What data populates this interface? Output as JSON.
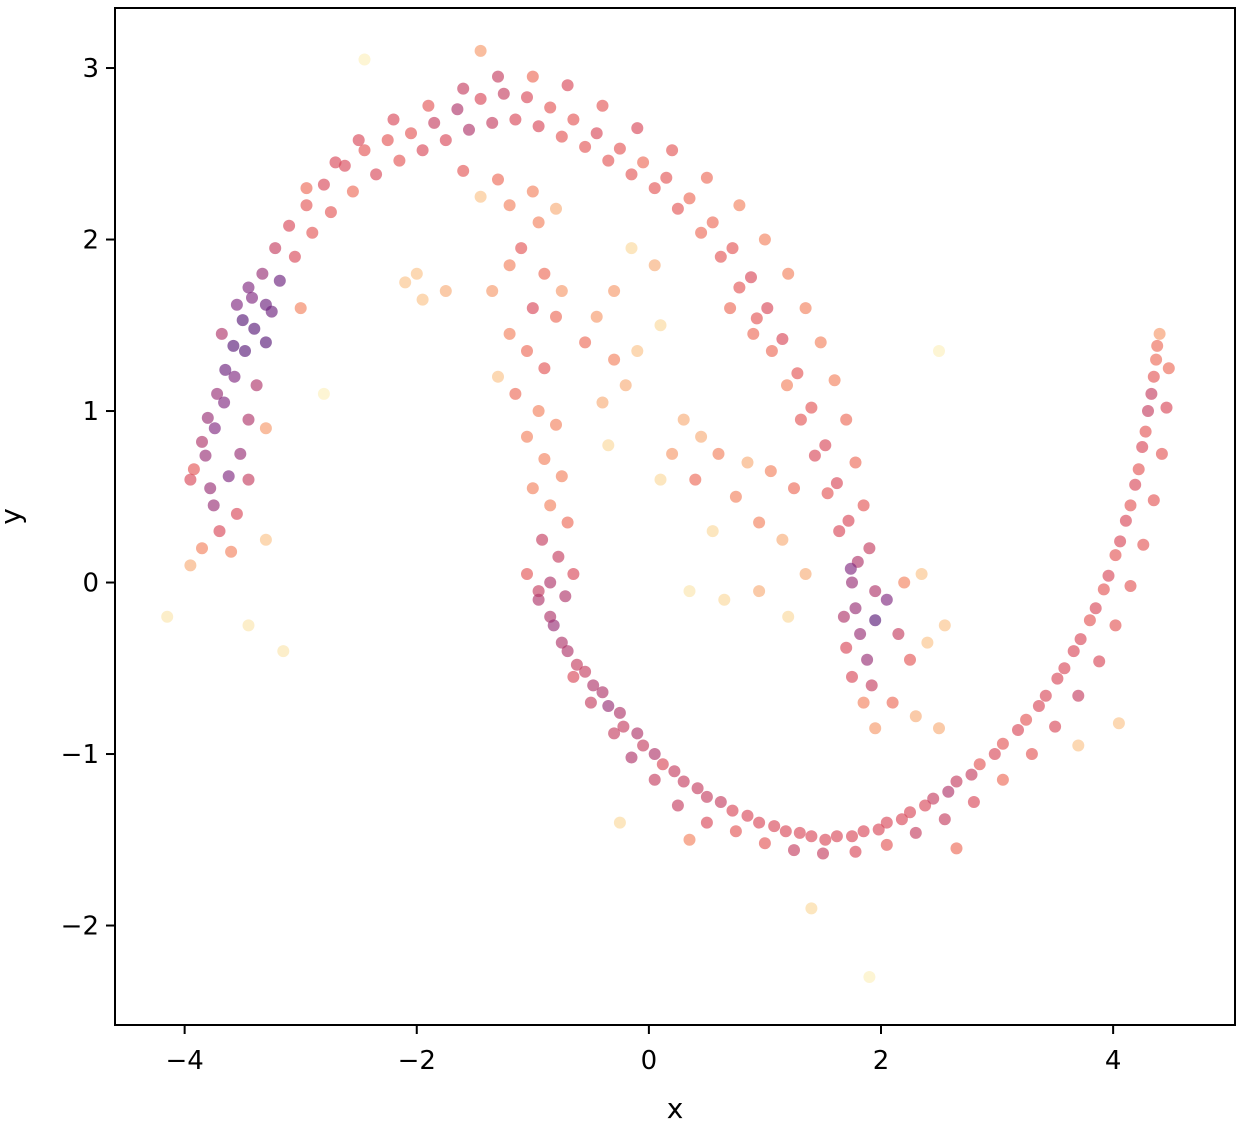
{
  "chart_data": {
    "type": "scatter",
    "title": "",
    "xlabel": "x",
    "ylabel": "y",
    "xlim": [
      -4.6,
      5.05
    ],
    "ylim": [
      -2.58,
      3.35
    ],
    "xticks": [
      -4,
      -2,
      0,
      2,
      4
    ],
    "yticks": [
      -2,
      -1,
      0,
      1,
      2,
      3
    ],
    "xtick_labels": [
      "−4",
      "−2",
      "0",
      "2",
      "4"
    ],
    "ytick_labels": [
      "−2",
      "−1",
      "0",
      "1",
      "2",
      "3"
    ],
    "grid": false,
    "legend": "none",
    "colormap": "magma-like (density)",
    "color_stops": [
      "#5a1d7a",
      "#7e2a82",
      "#a9356f",
      "#d3455c",
      "#ea5f55",
      "#f58c63",
      "#f9b27d",
      "#fbdc9f",
      "#fcf0bd"
    ],
    "marker_alpha": 0.65,
    "description_shape": "two interleaving half-moons",
    "points": [
      [
        -3.92,
        0.66
      ],
      [
        -3.85,
        0.82
      ],
      [
        -3.8,
        0.96
      ],
      [
        -3.72,
        1.1
      ],
      [
        -3.65,
        1.24
      ],
      [
        -3.58,
        1.38
      ],
      [
        -3.5,
        1.53
      ],
      [
        -3.42,
        1.66
      ],
      [
        -3.33,
        1.8
      ],
      [
        -3.22,
        1.95
      ],
      [
        -3.1,
        2.08
      ],
      [
        -2.95,
        2.2
      ],
      [
        -2.8,
        2.32
      ],
      [
        -2.62,
        2.43
      ],
      [
        -2.45,
        2.52
      ],
      [
        -2.25,
        2.58
      ],
      [
        -2.05,
        2.62
      ],
      [
        -1.85,
        2.68
      ],
      [
        -1.65,
        2.76
      ],
      [
        -1.45,
        2.82
      ],
      [
        -1.25,
        2.85
      ],
      [
        -1.05,
        2.83
      ],
      [
        -0.85,
        2.77
      ],
      [
        -0.65,
        2.7
      ],
      [
        -0.45,
        2.62
      ],
      [
        -0.25,
        2.53
      ],
      [
        -0.05,
        2.45
      ],
      [
        0.15,
        2.36
      ],
      [
        0.35,
        2.24
      ],
      [
        0.55,
        2.1
      ],
      [
        0.72,
        1.95
      ],
      [
        0.88,
        1.78
      ],
      [
        1.02,
        1.6
      ],
      [
        1.15,
        1.42
      ],
      [
        1.28,
        1.22
      ],
      [
        1.4,
        1.02
      ],
      [
        1.52,
        0.8
      ],
      [
        1.62,
        0.58
      ],
      [
        1.72,
        0.36
      ],
      [
        1.8,
        0.12
      ],
      [
        -3.95,
        0.6
      ],
      [
        -3.82,
        0.74
      ],
      [
        -3.74,
        0.9
      ],
      [
        -3.66,
        1.05
      ],
      [
        -3.57,
        1.2
      ],
      [
        -3.48,
        1.35
      ],
      [
        -3.4,
        1.48
      ],
      [
        -3.3,
        1.62
      ],
      [
        -3.18,
        1.76
      ],
      [
        -3.05,
        1.9
      ],
      [
        -2.9,
        2.04
      ],
      [
        -2.74,
        2.16
      ],
      [
        -2.55,
        2.28
      ],
      [
        -2.35,
        2.38
      ],
      [
        -2.15,
        2.46
      ],
      [
        -1.95,
        2.52
      ],
      [
        -1.75,
        2.58
      ],
      [
        -1.55,
        2.64
      ],
      [
        -1.35,
        2.68
      ],
      [
        -1.15,
        2.7
      ],
      [
        -0.95,
        2.66
      ],
      [
        -0.75,
        2.6
      ],
      [
        -0.55,
        2.54
      ],
      [
        -0.35,
        2.46
      ],
      [
        -0.15,
        2.38
      ],
      [
        0.05,
        2.3
      ],
      [
        0.25,
        2.18
      ],
      [
        0.45,
        2.04
      ],
      [
        0.62,
        1.9
      ],
      [
        0.78,
        1.72
      ],
      [
        0.93,
        1.54
      ],
      [
        1.06,
        1.35
      ],
      [
        1.19,
        1.15
      ],
      [
        1.31,
        0.95
      ],
      [
        1.43,
        0.74
      ],
      [
        1.54,
        0.52
      ],
      [
        1.64,
        0.3
      ],
      [
        1.74,
        0.08
      ],
      [
        -3.75,
        0.45
      ],
      [
        -3.7,
        0.3
      ],
      [
        -3.85,
        0.2
      ],
      [
        -3.95,
        0.1
      ],
      [
        -3.6,
        0.18
      ],
      [
        -3.55,
        0.4
      ],
      [
        -3.62,
        0.62
      ],
      [
        -3.78,
        0.55
      ],
      [
        -3.52,
        0.75
      ],
      [
        -3.45,
        0.95
      ],
      [
        -3.38,
        1.15
      ],
      [
        -3.3,
        1.4
      ],
      [
        -3.25,
        1.58
      ],
      [
        -3.45,
        1.72
      ],
      [
        -3.55,
        1.62
      ],
      [
        -3.68,
        1.45
      ],
      [
        -2.95,
        2.3
      ],
      [
        -2.7,
        2.45
      ],
      [
        -2.5,
        2.58
      ],
      [
        -2.2,
        2.7
      ],
      [
        -1.9,
        2.78
      ],
      [
        -1.6,
        2.88
      ],
      [
        -1.3,
        2.95
      ],
      [
        -1.0,
        2.95
      ],
      [
        -0.7,
        2.9
      ],
      [
        -0.4,
        2.78
      ],
      [
        -0.1,
        2.65
      ],
      [
        0.2,
        2.52
      ],
      [
        0.5,
        2.36
      ],
      [
        0.78,
        2.2
      ],
      [
        1.0,
        2.0
      ],
      [
        1.2,
        1.8
      ],
      [
        1.35,
        1.6
      ],
      [
        1.48,
        1.4
      ],
      [
        1.6,
        1.18
      ],
      [
        1.7,
        0.95
      ],
      [
        1.78,
        0.7
      ],
      [
        1.85,
        0.45
      ],
      [
        1.9,
        0.2
      ],
      [
        1.95,
        -0.05
      ],
      [
        -1.6,
        2.4
      ],
      [
        -1.3,
        2.35
      ],
      [
        -1.0,
        2.28
      ],
      [
        -0.8,
        2.18
      ],
      [
        -1.2,
        2.2
      ],
      [
        -1.45,
        2.25
      ],
      [
        -0.95,
        2.1
      ],
      [
        -1.1,
        1.95
      ],
      [
        -1.2,
        1.85
      ],
      [
        -0.9,
        1.8
      ],
      [
        -0.75,
        1.7
      ],
      [
        -1.35,
        1.7
      ],
      [
        -1.0,
        1.6
      ],
      [
        -0.8,
        1.55
      ],
      [
        -1.2,
        1.45
      ],
      [
        -1.05,
        1.35
      ],
      [
        -0.9,
        1.25
      ],
      [
        -1.3,
        1.2
      ],
      [
        -1.15,
        1.1
      ],
      [
        -0.95,
        1.0
      ],
      [
        -0.8,
        0.92
      ],
      [
        -1.05,
        0.85
      ],
      [
        -0.9,
        0.72
      ],
      [
        -0.75,
        0.62
      ],
      [
        -1.0,
        0.55
      ],
      [
        -0.85,
        0.45
      ],
      [
        -0.7,
        0.35
      ],
      [
        -0.92,
        0.25
      ],
      [
        -0.78,
        0.15
      ],
      [
        -0.65,
        0.05
      ],
      [
        -0.85,
        0.0
      ],
      [
        -0.72,
        -0.08
      ],
      [
        -0.95,
        -0.05
      ],
      [
        -0.85,
        -0.2
      ],
      [
        -0.75,
        -0.35
      ],
      [
        -0.62,
        -0.48
      ],
      [
        -0.48,
        -0.6
      ],
      [
        -0.35,
        -0.72
      ],
      [
        -0.22,
        -0.84
      ],
      [
        -0.05,
        -0.95
      ],
      [
        0.12,
        -1.06
      ],
      [
        0.3,
        -1.16
      ],
      [
        0.5,
        -1.25
      ],
      [
        0.72,
        -1.33
      ],
      [
        0.95,
        -1.4
      ],
      [
        1.18,
        -1.45
      ],
      [
        1.4,
        -1.48
      ],
      [
        1.62,
        -1.48
      ],
      [
        1.85,
        -1.45
      ],
      [
        2.05,
        -1.4
      ],
      [
        2.25,
        -1.34
      ],
      [
        2.45,
        -1.26
      ],
      [
        2.65,
        -1.16
      ],
      [
        2.85,
        -1.06
      ],
      [
        3.05,
        -0.94
      ],
      [
        3.25,
        -0.8
      ],
      [
        3.42,
        -0.66
      ],
      [
        3.58,
        -0.5
      ],
      [
        3.72,
        -0.33
      ],
      [
        3.85,
        -0.15
      ],
      [
        3.96,
        0.04
      ],
      [
        4.06,
        0.24
      ],
      [
        4.15,
        0.45
      ],
      [
        4.22,
        0.66
      ],
      [
        4.28,
        0.88
      ],
      [
        4.33,
        1.1
      ],
      [
        4.37,
        1.3
      ],
      [
        4.4,
        1.45
      ],
      [
        -1.05,
        0.05
      ],
      [
        -0.95,
        -0.1
      ],
      [
        -0.82,
        -0.25
      ],
      [
        -0.7,
        -0.4
      ],
      [
        -0.55,
        -0.52
      ],
      [
        -0.4,
        -0.64
      ],
      [
        -0.25,
        -0.76
      ],
      [
        -0.1,
        -0.88
      ],
      [
        0.05,
        -1.0
      ],
      [
        0.22,
        -1.1
      ],
      [
        0.42,
        -1.2
      ],
      [
        0.62,
        -1.28
      ],
      [
        0.85,
        -1.36
      ],
      [
        1.08,
        -1.42
      ],
      [
        1.3,
        -1.46
      ],
      [
        1.52,
        -1.5
      ],
      [
        1.75,
        -1.48
      ],
      [
        1.98,
        -1.44
      ],
      [
        2.18,
        -1.38
      ],
      [
        2.38,
        -1.3
      ],
      [
        2.58,
        -1.22
      ],
      [
        2.78,
        -1.12
      ],
      [
        2.98,
        -1.0
      ],
      [
        3.18,
        -0.86
      ],
      [
        3.36,
        -0.72
      ],
      [
        3.52,
        -0.56
      ],
      [
        3.66,
        -0.4
      ],
      [
        3.8,
        -0.22
      ],
      [
        3.92,
        -0.04
      ],
      [
        4.02,
        0.16
      ],
      [
        4.11,
        0.36
      ],
      [
        4.19,
        0.57
      ],
      [
        4.25,
        0.79
      ],
      [
        4.3,
        1.0
      ],
      [
        4.35,
        1.2
      ],
      [
        4.38,
        1.38
      ],
      [
        -0.65,
        -0.55
      ],
      [
        -0.5,
        -0.7
      ],
      [
        -0.3,
        -0.88
      ],
      [
        -0.15,
        -1.02
      ],
      [
        0.05,
        -1.15
      ],
      [
        0.25,
        -1.3
      ],
      [
        0.5,
        -1.4
      ],
      [
        0.75,
        -1.45
      ],
      [
        1.0,
        -1.52
      ],
      [
        1.25,
        -1.56
      ],
      [
        1.5,
        -1.58
      ],
      [
        1.78,
        -1.57
      ],
      [
        2.05,
        -1.53
      ],
      [
        2.3,
        -1.46
      ],
      [
        2.55,
        -1.38
      ],
      [
        2.8,
        -1.28
      ],
      [
        3.05,
        -1.15
      ],
      [
        3.3,
        -1.0
      ],
      [
        3.5,
        -0.84
      ],
      [
        3.7,
        -0.66
      ],
      [
        3.88,
        -0.46
      ],
      [
        4.02,
        -0.25
      ],
      [
        4.15,
        -0.02
      ],
      [
        4.26,
        0.22
      ],
      [
        4.35,
        0.48
      ],
      [
        4.42,
        0.75
      ],
      [
        4.46,
        1.02
      ],
      [
        4.48,
        1.25
      ],
      [
        1.75,
        0.0
      ],
      [
        1.78,
        -0.15
      ],
      [
        1.82,
        -0.3
      ],
      [
        1.88,
        -0.45
      ],
      [
        1.92,
        -0.6
      ],
      [
        1.85,
        -0.7
      ],
      [
        1.75,
        -0.55
      ],
      [
        1.7,
        -0.38
      ],
      [
        1.68,
        -0.2
      ],
      [
        1.95,
        -0.22
      ],
      [
        2.05,
        -0.1
      ],
      [
        2.2,
        0.0
      ],
      [
        2.35,
        0.05
      ],
      [
        2.15,
        -0.3
      ],
      [
        2.25,
        -0.45
      ],
      [
        2.4,
        -0.35
      ],
      [
        2.55,
        -0.25
      ],
      [
        2.1,
        -0.7
      ],
      [
        2.3,
        -0.78
      ],
      [
        2.5,
        -0.85
      ],
      [
        1.95,
        -0.85
      ],
      [
        0.3,
        0.95
      ],
      [
        0.45,
        0.85
      ],
      [
        0.6,
        0.75
      ],
      [
        0.85,
        0.7
      ],
      [
        1.05,
        0.65
      ],
      [
        1.25,
        0.55
      ],
      [
        0.75,
        0.5
      ],
      [
        0.95,
        0.35
      ],
      [
        1.15,
        0.25
      ],
      [
        0.4,
        0.6
      ],
      [
        0.2,
        0.75
      ],
      [
        0.55,
        0.3
      ],
      [
        0.35,
        -0.05
      ],
      [
        0.65,
        -0.1
      ],
      [
        0.95,
        -0.05
      ],
      [
        1.2,
        -0.2
      ],
      [
        1.35,
        0.05
      ],
      [
        -0.3,
        1.3
      ],
      [
        -0.2,
        1.15
      ],
      [
        -0.4,
        1.05
      ],
      [
        -0.35,
        0.8
      ],
      [
        -0.55,
        1.4
      ],
      [
        -0.45,
        1.55
      ],
      [
        -0.3,
        1.7
      ],
      [
        0.05,
        1.85
      ],
      [
        -0.15,
        1.95
      ],
      [
        0.7,
        1.6
      ],
      [
        0.9,
        1.45
      ],
      [
        -2.0,
        1.8
      ],
      [
        -1.75,
        1.7
      ],
      [
        -1.95,
        1.65
      ],
      [
        -2.1,
        1.75
      ],
      [
        -0.1,
        1.35
      ],
      [
        0.1,
        1.5
      ],
      [
        -4.15,
        -0.2
      ],
      [
        -3.45,
        -0.25
      ],
      [
        -3.15,
        -0.4
      ],
      [
        -2.45,
        3.05
      ],
      [
        -1.45,
        3.1
      ],
      [
        2.5,
        1.35
      ],
      [
        -0.25,
        -1.4
      ],
      [
        0.35,
        -1.5
      ],
      [
        1.4,
        -1.9
      ],
      [
        1.9,
        -2.3
      ],
      [
        0.1,
        0.6
      ],
      [
        3.7,
        -0.95
      ],
      [
        4.05,
        -0.82
      ],
      [
        2.65,
        -1.55
      ],
      [
        -2.8,
        1.1
      ],
      [
        -3.0,
        1.6
      ],
      [
        -3.3,
        0.9
      ],
      [
        -3.45,
        0.6
      ],
      [
        -3.3,
        0.25
      ]
    ]
  }
}
